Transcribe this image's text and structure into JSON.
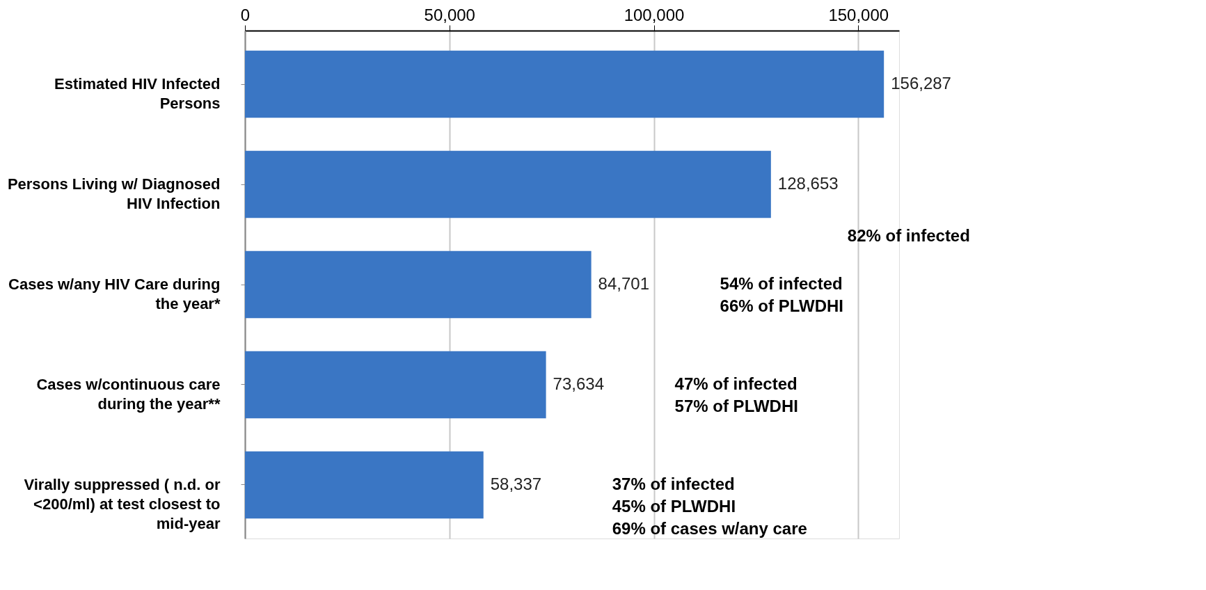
{
  "chart_data": {
    "type": "bar",
    "orientation": "horizontal",
    "categories": [
      "Estimated HIV Infected Persons",
      "Persons Living w/ Diagnosed HIV Infection",
      "Cases w/any HIV Care during the year*",
      "Cases w/continuous care during the year**",
      "Virally suppressed ( n.d. or <200/ml) at test closest to mid-year"
    ],
    "values": [
      156287,
      128653,
      84701,
      73634,
      58337
    ],
    "value_labels": [
      "156,287",
      "128,653",
      "84,701",
      "73,634",
      "58,337"
    ],
    "color": "#3a76c4",
    "xlim": [
      0,
      160000
    ],
    "xticks": [
      {
        "value": 0,
        "label": "0"
      },
      {
        "value": 50000,
        "label": "50,000"
      },
      {
        "value": 100000,
        "label": "100,000"
      },
      {
        "value": 150000,
        "label": "150,000"
      }
    ],
    "grid": "x",
    "annotations": [
      "82% of infected",
      "54% of infected\n66% of PLWDHI",
      "47% of infected\n57% of PLWDHI",
      "37% of infected\n45% of PLWDHI\n69% of cases w/any care"
    ]
  }
}
